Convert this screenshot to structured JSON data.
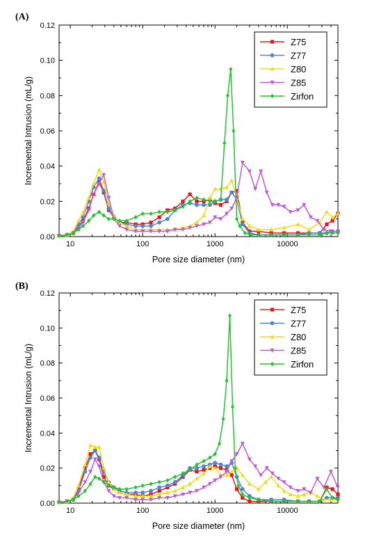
{
  "chart_data": [
    {
      "type": "line",
      "panel_label": "(A)",
      "xlabel": "Pore size diameter (nm)",
      "ylabel": "Incremental Intrusion (mL/g)",
      "xscale": "log",
      "xlim": [
        7,
        50000
      ],
      "ylim": [
        0,
        0.12
      ],
      "xticks": [
        10,
        100,
        1000,
        10000
      ],
      "xtick_labels": [
        "10",
        "100",
        "1000",
        "10000"
      ],
      "yticks": [
        0,
        0.02,
        0.04,
        0.06,
        0.08,
        0.1,
        0.12
      ],
      "ytick_labels": [
        "0.00",
        "0.02",
        "0.04",
        "0.06",
        "0.08",
        "0.10",
        "0.12"
      ],
      "legend_position": "top-right",
      "series": [
        {
          "name": "Z75",
          "color": "#e8161b",
          "marker": "square",
          "x": [
            7,
            9,
            11,
            13,
            15,
            18,
            21,
            25,
            29,
            34,
            40,
            48,
            60,
            80,
            100,
            130,
            170,
            220,
            280,
            360,
            450,
            560,
            700,
            850,
            1000,
            1200,
            1450,
            1700,
            2000,
            2400,
            3000,
            4000,
            6000,
            9000,
            14000,
            20000,
            28000,
            35000,
            42000,
            50000
          ],
          "y": [
            0.0005,
            0.001,
            0.002,
            0.006,
            0.009,
            0.016,
            0.024,
            0.031,
            0.025,
            0.015,
            0.011,
            0.008,
            0.008,
            0.007,
            0.007,
            0.008,
            0.011,
            0.015,
            0.016,
            0.02,
            0.024,
            0.02,
            0.02,
            0.021,
            0.019,
            0.018,
            0.02,
            0.025,
            0.026,
            0.008,
            0.003,
            0.003,
            0.002,
            0.002,
            0.002,
            0.002,
            0.002,
            0.007,
            0.009,
            0.013
          ]
        },
        {
          "name": "Z77",
          "color": "#4a86d4",
          "marker": "circle",
          "x": [
            7,
            9,
            11,
            13,
            15,
            18,
            21,
            25,
            29,
            34,
            40,
            48,
            60,
            80,
            100,
            130,
            170,
            220,
            280,
            360,
            450,
            560,
            700,
            850,
            1000,
            1200,
            1450,
            1700,
            2000,
            2400,
            3000,
            4000,
            6000,
            9000,
            14000,
            20000,
            28000,
            35000,
            42000,
            50000
          ],
          "y": [
            0.0005,
            0.001,
            0.002,
            0.007,
            0.011,
            0.02,
            0.028,
            0.033,
            0.026,
            0.016,
            0.011,
            0.008,
            0.007,
            0.006,
            0.006,
            0.006,
            0.008,
            0.01,
            0.015,
            0.018,
            0.019,
            0.018,
            0.018,
            0.018,
            0.02,
            0.021,
            0.021,
            0.025,
            0.021,
            0.007,
            0.002,
            0.001,
            0.001,
            0.001,
            0.001,
            0.002,
            0.002,
            0.002,
            0.003,
            0.003
          ]
        },
        {
          "name": "Z80",
          "color": "#f0dc14",
          "marker": "triangle-up",
          "x": [
            7,
            9,
            11,
            13,
            15,
            18,
            21,
            25,
            29,
            34,
            40,
            48,
            60,
            80,
            100,
            130,
            170,
            220,
            280,
            360,
            450,
            560,
            700,
            850,
            1000,
            1200,
            1450,
            1700,
            2000,
            2400,
            3000,
            4000,
            6000,
            9000,
            14000,
            20000,
            28000,
            35000,
            42000,
            50000
          ],
          "y": [
            0.0005,
            0.001,
            0.003,
            0.009,
            0.014,
            0.022,
            0.03,
            0.038,
            0.031,
            0.019,
            0.012,
            0.008,
            0.006,
            0.004,
            0.004,
            0.004,
            0.004,
            0.004,
            0.004,
            0.005,
            0.006,
            0.008,
            0.012,
            0.022,
            0.027,
            0.027,
            0.028,
            0.032,
            0.022,
            0.01,
            0.006,
            0.004,
            0.004,
            0.005,
            0.007,
            0.004,
            0.008,
            0.014,
            0.011,
            0.013
          ]
        },
        {
          "name": "Z85",
          "color": "#c05ad2",
          "marker": "triangle-down",
          "x": [
            7,
            9,
            11,
            13,
            15,
            18,
            21,
            25,
            29,
            34,
            40,
            48,
            60,
            80,
            100,
            130,
            170,
            220,
            280,
            360,
            450,
            560,
            700,
            850,
            1000,
            1200,
            1450,
            1700,
            2000,
            2400,
            3000,
            3600,
            4300,
            5200,
            6200,
            7500,
            9000,
            11000,
            14000,
            17000,
            21000,
            26000,
            32000,
            40000,
            50000
          ],
          "y": [
            0.0005,
            0.001,
            0.002,
            0.005,
            0.008,
            0.015,
            0.024,
            0.03,
            0.035,
            0.022,
            0.01,
            0.006,
            0.004,
            0.003,
            0.003,
            0.003,
            0.003,
            0.003,
            0.004,
            0.004,
            0.005,
            0.006,
            0.007,
            0.008,
            0.011,
            0.01,
            0.013,
            0.016,
            0.022,
            0.042,
            0.037,
            0.027,
            0.037,
            0.025,
            0.018,
            0.018,
            0.017,
            0.014,
            0.015,
            0.018,
            0.011,
            0.009,
            0.004,
            0.003,
            0.003
          ]
        },
        {
          "name": "Zirfon",
          "color": "#22c42c",
          "marker": "diamond",
          "x": [
            7,
            9,
            11,
            13,
            15,
            18,
            21,
            25,
            29,
            34,
            40,
            48,
            60,
            80,
            100,
            130,
            170,
            220,
            280,
            360,
            450,
            560,
            700,
            850,
            1000,
            1200,
            1350,
            1500,
            1650,
            1800,
            2000,
            2200,
            2600,
            3200,
            4000,
            6000,
            9000,
            14000,
            20000,
            28000,
            35000,
            42000,
            50000
          ],
          "y": [
            0.0005,
            0.001,
            0.002,
            0.004,
            0.006,
            0.009,
            0.012,
            0.014,
            0.012,
            0.01,
            0.01,
            0.009,
            0.009,
            0.011,
            0.013,
            0.013,
            0.014,
            0.014,
            0.015,
            0.017,
            0.02,
            0.022,
            0.021,
            0.02,
            0.02,
            0.021,
            0.053,
            0.08,
            0.095,
            0.06,
            0.01,
            0.006,
            0.002,
            0.001,
            0.001,
            0.001,
            0.001,
            0.001,
            0.001,
            0.001,
            0.002,
            0.002,
            0.002
          ]
        }
      ]
    },
    {
      "type": "line",
      "panel_label": "(B)",
      "xlabel": "Pore size diameter (nm)",
      "ylabel": "Incremental Intrusion (mL/g)",
      "xscale": "log",
      "xlim": [
        7,
        50000
      ],
      "ylim": [
        0,
        0.12
      ],
      "xticks": [
        10,
        100,
        1000,
        10000
      ],
      "xtick_labels": [
        "10",
        "100",
        "1000",
        "10000"
      ],
      "yticks": [
        0,
        0.02,
        0.04,
        0.06,
        0.08,
        0.1,
        0.12
      ],
      "ytick_labels": [
        "0.00",
        "0.02",
        "0.04",
        "0.06",
        "0.08",
        "0.10",
        "0.12"
      ],
      "legend_position": "top-right",
      "series": [
        {
          "name": "Z75",
          "color": "#e8161b",
          "marker": "square",
          "x": [
            7,
            9,
            11,
            13,
            16,
            19,
            22,
            25,
            29,
            34,
            40,
            48,
            60,
            80,
            100,
            130,
            170,
            220,
            280,
            360,
            450,
            560,
            700,
            850,
            1000,
            1200,
            1450,
            1700,
            2000,
            2400,
            3000,
            4000,
            6000,
            9000,
            14000,
            20000,
            28000,
            35000,
            42000,
            50000
          ],
          "y": [
            0.0005,
            0.001,
            0.002,
            0.008,
            0.02,
            0.028,
            0.03,
            0.025,
            0.015,
            0.01,
            0.008,
            0.006,
            0.005,
            0.005,
            0.004,
            0.005,
            0.007,
            0.009,
            0.011,
            0.015,
            0.019,
            0.018,
            0.019,
            0.02,
            0.021,
            0.02,
            0.019,
            0.016,
            0.008,
            0.003,
            0.001,
            0.001,
            0.001,
            0.001,
            0.001,
            0.001,
            0.001,
            0.009,
            0.008,
            0.005
          ]
        },
        {
          "name": "Z77",
          "color": "#4a86d4",
          "marker": "circle",
          "x": [
            7,
            9,
            11,
            13,
            16,
            19,
            22,
            25,
            29,
            34,
            40,
            48,
            60,
            80,
            100,
            130,
            170,
            220,
            280,
            360,
            450,
            560,
            700,
            850,
            1000,
            1200,
            1450,
            1700,
            2000,
            2400,
            3000,
            4000,
            6000,
            9000,
            14000,
            20000,
            28000,
            35000,
            42000,
            50000
          ],
          "y": [
            0.0005,
            0.001,
            0.002,
            0.007,
            0.018,
            0.026,
            0.03,
            0.026,
            0.018,
            0.012,
            0.009,
            0.007,
            0.006,
            0.006,
            0.006,
            0.007,
            0.009,
            0.01,
            0.012,
            0.016,
            0.02,
            0.02,
            0.021,
            0.022,
            0.023,
            0.022,
            0.021,
            0.023,
            0.015,
            0.008,
            0.004,
            0.002,
            0.002,
            0.002,
            0.001,
            0.001,
            0.001,
            0.003,
            0.003,
            0.003
          ]
        },
        {
          "name": "Z80",
          "color": "#f0dc14",
          "marker": "triangle-up",
          "x": [
            7,
            9,
            11,
            13,
            16,
            19,
            22,
            25,
            29,
            34,
            40,
            48,
            60,
            80,
            100,
            130,
            170,
            220,
            280,
            360,
            450,
            560,
            700,
            850,
            1000,
            1200,
            1450,
            1700,
            2000,
            2400,
            3000,
            4000,
            5000,
            6000,
            7500,
            9000,
            11000,
            14000,
            17000,
            21000,
            26000,
            32000,
            40000,
            50000
          ],
          "y": [
            0.0005,
            0.001,
            0.003,
            0.01,
            0.022,
            0.033,
            0.032,
            0.032,
            0.02,
            0.012,
            0.008,
            0.006,
            0.005,
            0.004,
            0.004,
            0.004,
            0.005,
            0.006,
            0.007,
            0.009,
            0.011,
            0.014,
            0.017,
            0.021,
            0.02,
            0.016,
            0.016,
            0.018,
            0.02,
            0.016,
            0.011,
            0.008,
            0.012,
            0.015,
            0.01,
            0.007,
            0.005,
            0.004,
            0.005,
            0.006,
            0.004,
            0.002,
            0.002,
            0.002
          ]
        },
        {
          "name": "Z85",
          "color": "#c05ad2",
          "marker": "triangle-down",
          "x": [
            7,
            9,
            11,
            13,
            16,
            19,
            22,
            25,
            29,
            34,
            40,
            48,
            60,
            80,
            100,
            130,
            170,
            220,
            280,
            360,
            450,
            560,
            700,
            850,
            1000,
            1200,
            1450,
            1700,
            2000,
            2400,
            3000,
            3600,
            4300,
            5200,
            6200,
            7500,
            9000,
            11000,
            14000,
            17000,
            21000,
            26000,
            32000,
            40000,
            50000
          ],
          "y": [
            0.0005,
            0.001,
            0.002,
            0.006,
            0.012,
            0.018,
            0.025,
            0.021,
            0.012,
            0.007,
            0.004,
            0.003,
            0.003,
            0.002,
            0.002,
            0.002,
            0.003,
            0.003,
            0.004,
            0.005,
            0.006,
            0.007,
            0.009,
            0.011,
            0.013,
            0.015,
            0.018,
            0.024,
            0.028,
            0.034,
            0.025,
            0.021,
            0.016,
            0.02,
            0.017,
            0.014,
            0.012,
            0.009,
            0.007,
            0.008,
            0.006,
            0.014,
            0.009,
            0.018,
            0.009
          ]
        },
        {
          "name": "Zirfon",
          "color": "#22c42c",
          "marker": "diamond",
          "x": [
            7,
            9,
            11,
            13,
            16,
            19,
            22,
            25,
            29,
            34,
            40,
            48,
            60,
            80,
            100,
            130,
            170,
            220,
            280,
            360,
            450,
            560,
            700,
            850,
            1000,
            1150,
            1300,
            1450,
            1600,
            1750,
            1900,
            2100,
            2400,
            3000,
            4000,
            6000,
            9000,
            14000,
            20000,
            28000,
            35000,
            42000,
            50000
          ],
          "y": [
            0.0005,
            0.001,
            0.002,
            0.004,
            0.007,
            0.011,
            0.015,
            0.014,
            0.012,
            0.01,
            0.009,
            0.008,
            0.008,
            0.009,
            0.01,
            0.011,
            0.012,
            0.013,
            0.015,
            0.017,
            0.019,
            0.022,
            0.024,
            0.026,
            0.028,
            0.034,
            0.048,
            0.07,
            0.107,
            0.055,
            0.02,
            0.01,
            0.005,
            0.003,
            0.002,
            0.001,
            0.001,
            0.001,
            0.001,
            0.001,
            0.008,
            0.003,
            0.002
          ]
        }
      ]
    }
  ]
}
